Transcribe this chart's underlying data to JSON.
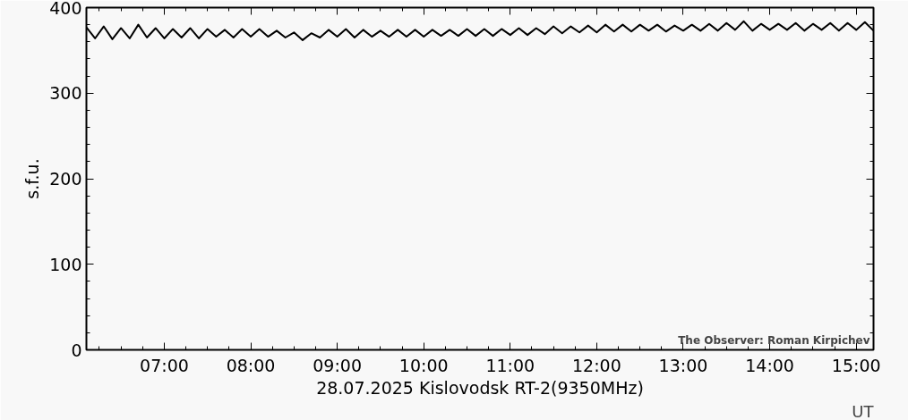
{
  "chart_data": {
    "type": "line",
    "ylabel": "s.f.u.",
    "xlabel": "28.07.2025 Kislovodsk RT-2(9350MHz)",
    "annotations": [
      "The Observer: Roman Kirpichev",
      "UT"
    ],
    "xlim": [
      6.1,
      15.2
    ],
    "ylim": [
      0,
      400
    ],
    "xticks": [
      {
        "value": 7,
        "label": "07:00"
      },
      {
        "value": 8,
        "label": "08:00"
      },
      {
        "value": 9,
        "label": "09:00"
      },
      {
        "value": 10,
        "label": "10:00"
      },
      {
        "value": 11,
        "label": "11:00"
      },
      {
        "value": 12,
        "label": "12:00"
      },
      {
        "value": 13,
        "label": "13:00"
      },
      {
        "value": 14,
        "label": "14:00"
      },
      {
        "value": 15,
        "label": "15:00"
      }
    ],
    "yticks": [
      0,
      100,
      200,
      300,
      400
    ],
    "grid": false,
    "marker": "none",
    "line_style": "solid",
    "series": [
      {
        "color": "#000000",
        "x": [
          6.1,
          6.2,
          6.3,
          6.4,
          6.5,
          6.6,
          6.7,
          6.8,
          6.9,
          7.0,
          7.1,
          7.2,
          7.3,
          7.4,
          7.5,
          7.6,
          7.7,
          7.8,
          7.9,
          8.0,
          8.1,
          8.2,
          8.3,
          8.4,
          8.5,
          8.6,
          8.7,
          8.8,
          8.9,
          9.0,
          9.1,
          9.2,
          9.3,
          9.4,
          9.5,
          9.6,
          9.7,
          9.8,
          9.9,
          10.0,
          10.1,
          10.2,
          10.3,
          10.4,
          10.5,
          10.6,
          10.7,
          10.8,
          10.9,
          11.0,
          11.1,
          11.2,
          11.3,
          11.4,
          11.5,
          11.6,
          11.7,
          11.8,
          11.9,
          12.0,
          12.1,
          12.2,
          12.3,
          12.4,
          12.5,
          12.6,
          12.7,
          12.8,
          12.9,
          13.0,
          13.1,
          13.2,
          13.3,
          13.4,
          13.5,
          13.6,
          13.7,
          13.8,
          13.9,
          14.0,
          14.1,
          14.2,
          14.3,
          14.4,
          14.5,
          14.6,
          14.7,
          14.8,
          14.9,
          15.0,
          15.1,
          15.2
        ],
        "values": [
          377,
          364,
          378,
          363,
          376,
          364,
          380,
          365,
          376,
          364,
          375,
          365,
          376,
          364,
          375,
          366,
          374,
          365,
          375,
          366,
          375,
          366,
          373,
          365,
          371,
          362,
          370,
          365,
          374,
          366,
          375,
          365,
          374,
          366,
          373,
          366,
          374,
          366,
          374,
          366,
          374,
          367,
          374,
          367,
          375,
          367,
          375,
          367,
          375,
          368,
          376,
          368,
          376,
          369,
          378,
          370,
          378,
          371,
          379,
          371,
          380,
          372,
          380,
          372,
          380,
          373,
          380,
          372,
          379,
          373,
          380,
          373,
          381,
          373,
          382,
          374,
          384,
          373,
          381,
          374,
          381,
          374,
          382,
          373,
          381,
          374,
          382,
          373,
          382,
          374,
          383,
          373
        ]
      }
    ]
  }
}
